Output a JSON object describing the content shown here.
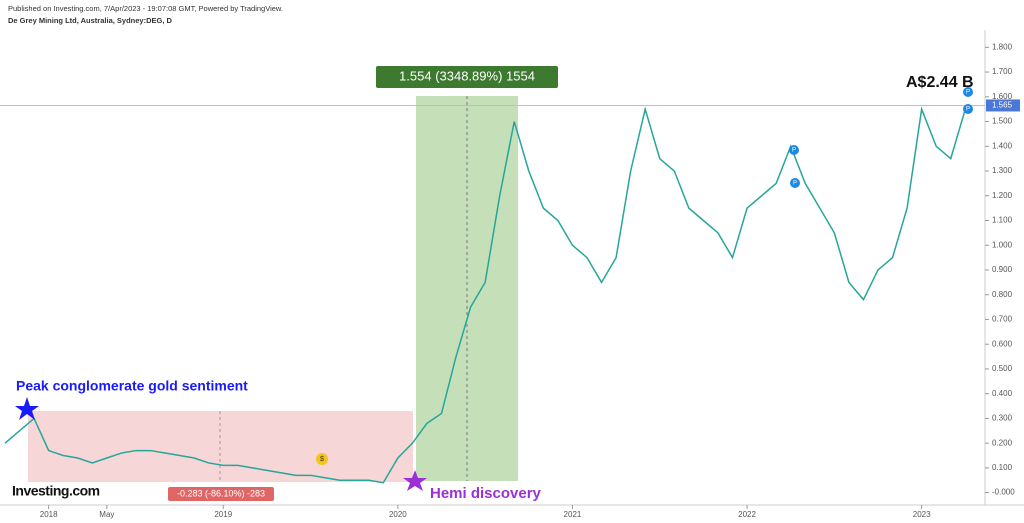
{
  "chart_data": {
    "type": "line",
    "source_note": "Published on Investing.com, 7/Apr/2023 - 19:07:08 GMT, Powered by TradingView.",
    "title": "De Grey Mining Ltd, Australia, Sydney:DEG, D",
    "measure_up": "1.554 (3348.89%) 1554",
    "measure_down": "-0.283 (-86.10%) -283",
    "market_cap_note": "A$2.44 B",
    "peak_note": "Peak conglomerate gold sentiment",
    "discovery_note": "Hemi discovery",
    "logo": "Investing.com",
    "dividend_marker": "$",
    "event_marker": "P",
    "last_price": 1.565,
    "color": "#26a69a",
    "categories": [
      null,
      null,
      null,
      "2018",
      null,
      null,
      null,
      "May",
      null,
      null,
      null,
      null,
      null,
      null,
      null,
      "2019",
      null,
      null,
      null,
      null,
      null,
      null,
      null,
      null,
      null,
      null,
      null,
      "2020",
      null,
      null,
      null,
      null,
      null,
      null,
      null,
      null,
      null,
      null,
      null,
      "2021",
      null,
      null,
      null,
      null,
      null,
      null,
      null,
      null,
      null,
      null,
      null,
      "2022",
      null,
      null,
      null,
      null,
      null,
      null,
      null,
      null,
      null,
      null,
      null,
      "2023",
      null,
      null,
      null
    ],
    "values": [
      0.2,
      0.25,
      0.3,
      0.17,
      0.15,
      0.14,
      0.12,
      0.14,
      0.16,
      0.17,
      0.17,
      0.16,
      0.15,
      0.14,
      0.12,
      0.11,
      0.11,
      0.1,
      0.09,
      0.08,
      0.07,
      0.07,
      0.06,
      0.05,
      0.05,
      0.05,
      0.04,
      0.14,
      0.2,
      0.28,
      0.32,
      0.55,
      0.75,
      0.85,
      1.2,
      1.5,
      1.3,
      1.15,
      1.1,
      1.0,
      0.95,
      0.85,
      0.95,
      1.3,
      1.55,
      1.35,
      1.3,
      1.15,
      1.1,
      1.05,
      0.95,
      1.15,
      1.2,
      1.25,
      1.4,
      1.25,
      1.15,
      1.05,
      0.85,
      0.78,
      0.9,
      0.95,
      1.15,
      1.55,
      1.4,
      1.35,
      1.55
    ],
    "ylim": [
      -0.05,
      1.87
    ],
    "yticks": [
      {
        "value": 0,
        "label": "-0.000"
      },
      {
        "value": 0.1,
        "label": "0.100"
      },
      {
        "value": 0.2,
        "label": "0.200"
      },
      {
        "value": 0.3,
        "label": "0.300"
      },
      {
        "value": 0.4,
        "label": "0.400"
      },
      {
        "value": 0.5,
        "label": "0.500"
      },
      {
        "value": 0.6,
        "label": "0.600"
      },
      {
        "value": 0.7,
        "label": "0.700"
      },
      {
        "value": 0.8,
        "label": "0.800"
      },
      {
        "value": 0.9,
        "label": "0.900"
      },
      {
        "value": 1.0,
        "label": "1.000"
      },
      {
        "value": 1.1,
        "label": "1.100"
      },
      {
        "value": 1.2,
        "label": "1.200"
      },
      {
        "value": 1.3,
        "label": "1.300"
      },
      {
        "value": 1.4,
        "label": "1.400"
      },
      {
        "value": 1.5,
        "label": "1.500"
      },
      {
        "value": 1.6,
        "label": "1.600"
      },
      {
        "value": 1.7,
        "label": "1.700"
      },
      {
        "value": 1.8,
        "label": "1.800"
      }
    ]
  }
}
